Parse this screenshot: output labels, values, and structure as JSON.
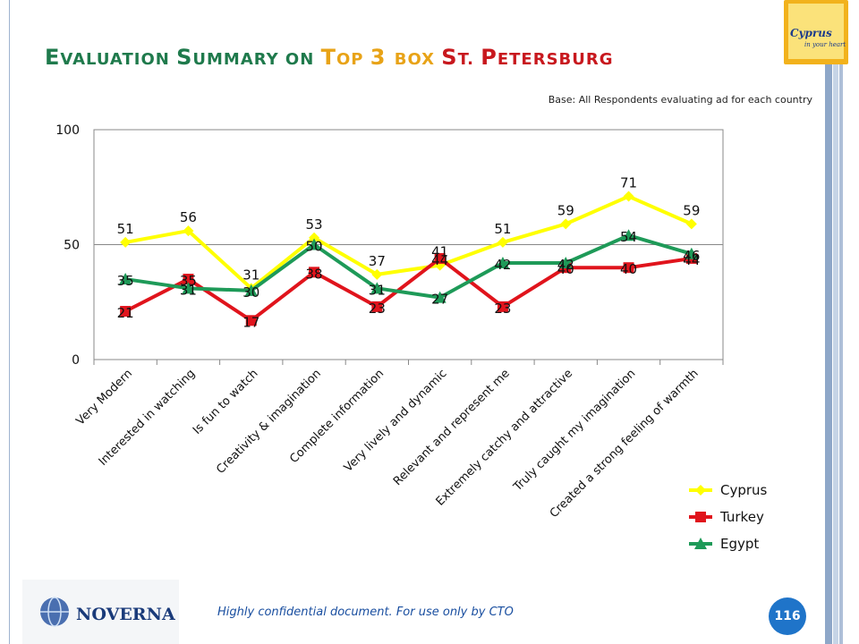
{
  "header": {
    "title_parts": [
      {
        "text": "E",
        "color": "#1f7a4c",
        "small": false
      },
      {
        "text": "VALUATION ",
        "color": "#1f7a4c",
        "small": true
      },
      {
        "text": "S",
        "color": "#1f7a4c",
        "small": false
      },
      {
        "text": "UMMARY ON ",
        "color": "#1f7a4c",
        "small": true
      },
      {
        "text": "T",
        "color": "#e8a317",
        "small": false
      },
      {
        "text": "OP ",
        "color": "#e8a317",
        "small": true
      },
      {
        "text": "3 ",
        "color": "#e8a317",
        "small": false
      },
      {
        "text": "BOX ",
        "color": "#e8a317",
        "small": true
      },
      {
        "text": "S",
        "color": "#c8181e",
        "small": false
      },
      {
        "text": "T. ",
        "color": "#c8181e",
        "small": true
      },
      {
        "text": "P",
        "color": "#c8181e",
        "small": false
      },
      {
        "text": "ETERSBURG",
        "color": "#c8181e",
        "small": true
      }
    ],
    "subtitle": "Base: All Respondents evaluating ad for each country"
  },
  "logos": {
    "cyprus_text": "Cyprus",
    "cyprus_tagline": "in your heart",
    "noverna_text": "NOVERNA"
  },
  "footer": {
    "note": "Highly confidential document. For use only by CTO",
    "page_number": "116"
  },
  "chart_data": {
    "type": "line",
    "categories": [
      "Very Modern",
      "Interested in watching",
      "Is fun to watch",
      "Creativity & imagination",
      "Complete information",
      "Very lively and dynamic",
      "Relevant and represent me",
      "Extremely catchy and attractive",
      "Truly caught my imagination",
      "Created a strong feeling of warmth"
    ],
    "series": [
      {
        "name": "Cyprus",
        "color": "#ffff00",
        "marker": "diamond",
        "values": [
          51,
          56,
          31,
          53,
          37,
          41,
          51,
          59,
          71,
          59
        ]
      },
      {
        "name": "Turkey",
        "color": "#e0141c",
        "marker": "square",
        "values": [
          21,
          35,
          17,
          38,
          23,
          44,
          23,
          40,
          40,
          44
        ]
      },
      {
        "name": "Egypt",
        "color": "#1e9a58",
        "marker": "triangle",
        "values": [
          35,
          31,
          30,
          50,
          31,
          27,
          42,
          42,
          54,
          46
        ]
      }
    ],
    "ylim": [
      0,
      100
    ],
    "yticks": [
      0,
      50,
      100
    ],
    "grid": true,
    "legend": "bottom-right"
  }
}
